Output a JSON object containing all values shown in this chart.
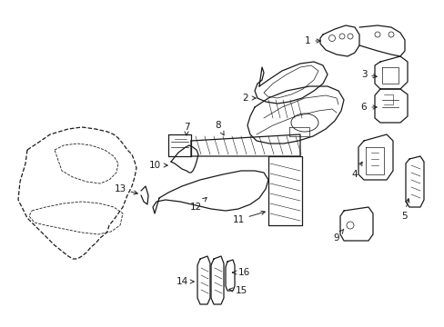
{
  "bg_color": "#ffffff",
  "line_color": "#1a1a1a",
  "fig_width": 4.89,
  "fig_height": 3.6,
  "dpi": 100,
  "label_fs": 7.5,
  "lw": 0.9
}
